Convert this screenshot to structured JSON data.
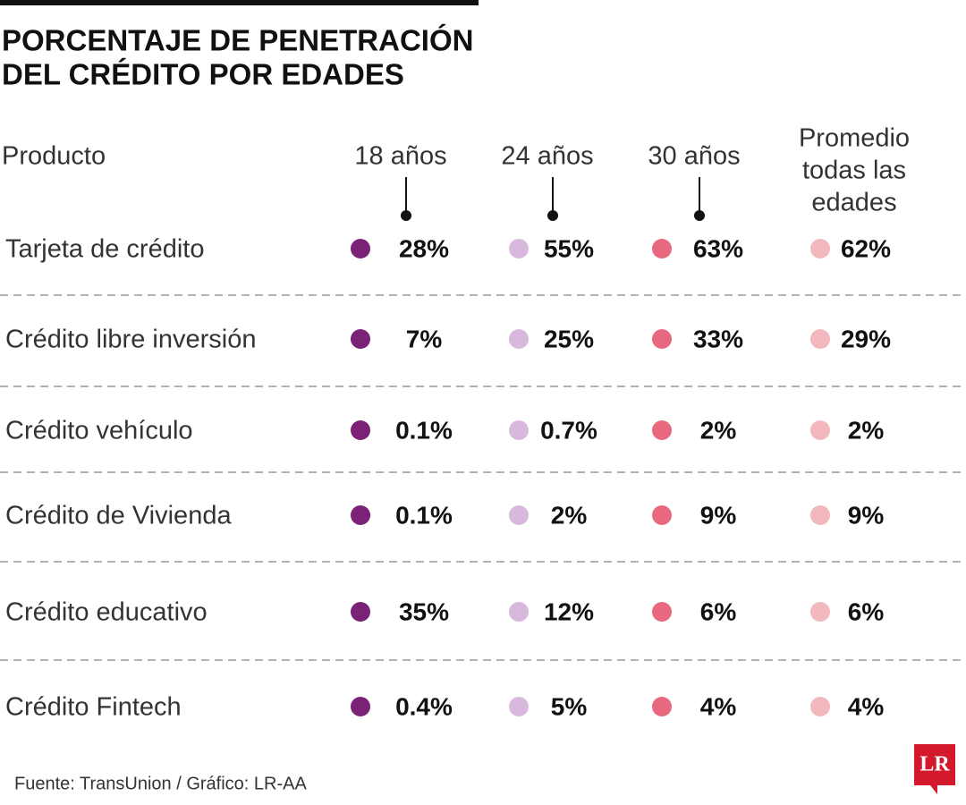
{
  "header": {
    "title": [
      "PORCENTAJE DE PENETRACIÓN",
      "DEL CRÉDITO POR EDADES"
    ]
  },
  "table": {
    "columns": [
      "Producto",
      "18 años",
      "24 años",
      "30 años",
      [
        "Promedio",
        "todas las",
        "edades"
      ]
    ],
    "rows": [
      [
        "Tarjeta de crédito",
        "28%",
        "55%",
        "63%",
        "62%"
      ],
      [
        "Crédito libre inversión",
        "7%",
        "25%",
        "33%",
        "29%"
      ],
      [
        "Crédito vehículo",
        "0.1%",
        "0.7%",
        "2%",
        "2%"
      ],
      [
        "Crédito de Vivienda",
        "0.1%",
        "2%",
        "9%",
        "9%"
      ],
      [
        "Crédito educativo",
        "35%",
        "12%",
        "6%",
        "6%"
      ],
      [
        "Crédito Fintech",
        "0.4%",
        "5%",
        "4%",
        "4%"
      ]
    ]
  },
  "footer": {
    "source": "Fuente: TransUnion / Gráfico: LR-AA",
    "logo": "LR"
  }
}
